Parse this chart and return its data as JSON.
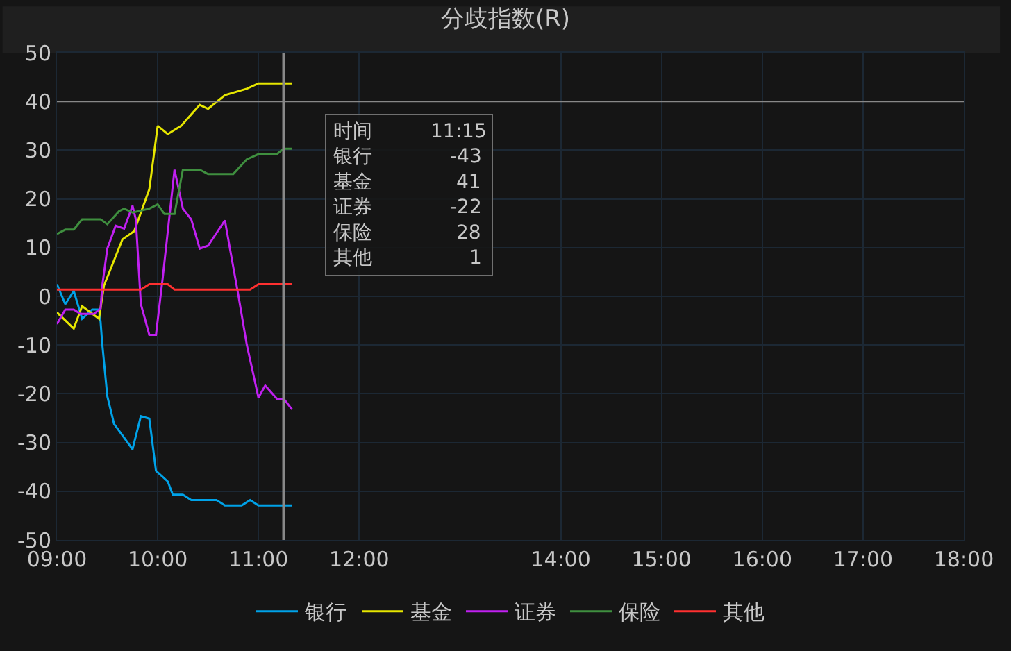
{
  "chart_data": {
    "type": "line",
    "title": "分歧指数(R)",
    "xlim": [
      9,
      18
    ],
    "xticks": [
      {
        "value": 9,
        "label": "09:00"
      },
      {
        "value": 10,
        "label": "10:00"
      },
      {
        "value": 11,
        "label": "11:00"
      },
      {
        "value": 12,
        "label": "12:00"
      },
      {
        "value": 14,
        "label": "14:00"
      },
      {
        "value": 15,
        "label": "15:00"
      },
      {
        "value": 16,
        "label": "16:00"
      },
      {
        "value": 17,
        "label": "17:00"
      },
      {
        "value": 18,
        "label": "18:00"
      }
    ],
    "ylim": [
      -50,
      50
    ],
    "yticks": [
      -50,
      -40,
      -30,
      -20,
      -10,
      0,
      10,
      20,
      30,
      40,
      50
    ],
    "grid": true,
    "legend": "bottom",
    "marker": "none",
    "line_style": "solid",
    "series": [
      {
        "name": "银行",
        "color": "#00a2e8",
        "x": [
          9,
          9.083,
          9.167,
          9.25,
          9.35,
          9.417,
          9.433,
          9.45,
          9.467,
          9.5,
          9.567,
          9.667,
          9.75,
          9.833,
          9.917,
          9.983,
          10.1,
          10.15,
          10.25,
          10.333,
          10.583,
          10.667,
          10.833,
          10.917,
          11,
          11.333
        ],
        "values": [
          2.5,
          -1.6,
          1.1,
          -4.6,
          -2.7,
          -2.7,
          -5.2,
          -9.8,
          -13.4,
          -20.5,
          -26.2,
          -29,
          -31.4,
          -24.6,
          -25.1,
          -35.8,
          -38,
          -40.7,
          -40.7,
          -41.8,
          -41.8,
          -42.9,
          -42.9,
          -41.8,
          -42.9,
          -42.9
        ]
      },
      {
        "name": "基金",
        "color": "#e6e600",
        "x": [
          9,
          9.167,
          9.25,
          9.417,
          9.467,
          9.65,
          9.767,
          9.917,
          10,
          10.1,
          10.233,
          10.417,
          10.5,
          10.667,
          10.883,
          11,
          11.333
        ],
        "values": [
          -3.3,
          -6.6,
          -2,
          -4.6,
          2.2,
          11.7,
          13.4,
          22,
          35,
          33.3,
          35,
          39.3,
          38.5,
          41.3,
          42.6,
          43.7,
          43.7
        ]
      },
      {
        "name": "证券",
        "color": "#c020f0",
        "x": [
          9,
          9.083,
          9.167,
          9.233,
          9.367,
          9.433,
          9.45,
          9.5,
          9.583,
          9.667,
          9.75,
          9.783,
          9.833,
          9.917,
          9.983,
          10.05,
          10.167,
          10.25,
          10.333,
          10.417,
          10.5,
          10.667,
          10.717,
          10.8,
          10.883,
          11,
          11.067,
          11.183,
          11.25,
          11.333
        ],
        "values": [
          -5.7,
          -2.7,
          -2.7,
          -3.6,
          -3.6,
          -2.5,
          2.2,
          9.8,
          14.5,
          13.9,
          18.6,
          15.8,
          -1.6,
          -7.9,
          -7.9,
          3.8,
          26,
          18,
          15.8,
          9.8,
          10.4,
          15.6,
          9.8,
          0.3,
          -9.8,
          -20.8,
          -18.3,
          -21,
          -21,
          -23.2
        ]
      },
      {
        "name": "保险",
        "color": "#3f8f3f",
        "x": [
          9,
          9.083,
          9.167,
          9.25,
          9.433,
          9.5,
          9.617,
          9.667,
          9.75,
          9.917,
          10,
          10.067,
          10.167,
          10.25,
          10.417,
          10.5,
          10.75,
          10.883,
          11,
          11.183,
          11.25,
          11.333
        ],
        "values": [
          12.8,
          13.7,
          13.7,
          15.8,
          15.8,
          14.8,
          17.5,
          18,
          17.2,
          18,
          18.9,
          16.9,
          16.9,
          26,
          26,
          25.1,
          25.1,
          28.1,
          29.2,
          29.2,
          30.3,
          30.3
        ]
      },
      {
        "name": "其他",
        "color": "#ff3030",
        "x": [
          9,
          9.833,
          9.917,
          10.1,
          10.167,
          10.917,
          11,
          11.333
        ],
        "values": [
          1.4,
          1.4,
          2.5,
          2.5,
          1.4,
          1.4,
          2.5,
          2.5
        ]
      }
    ],
    "ref_lines": [
      {
        "axis": "x",
        "value": 11.25,
        "color": "#888888"
      },
      {
        "axis": "y",
        "value": 40,
        "color": "#888888"
      }
    ],
    "annotations": [
      "时间　　　11:15\n银行　　　　-43\n基金　　　　 41\n证券　　　　-22\n保险　　　　 28\n其他　　　　　1"
    ]
  }
}
